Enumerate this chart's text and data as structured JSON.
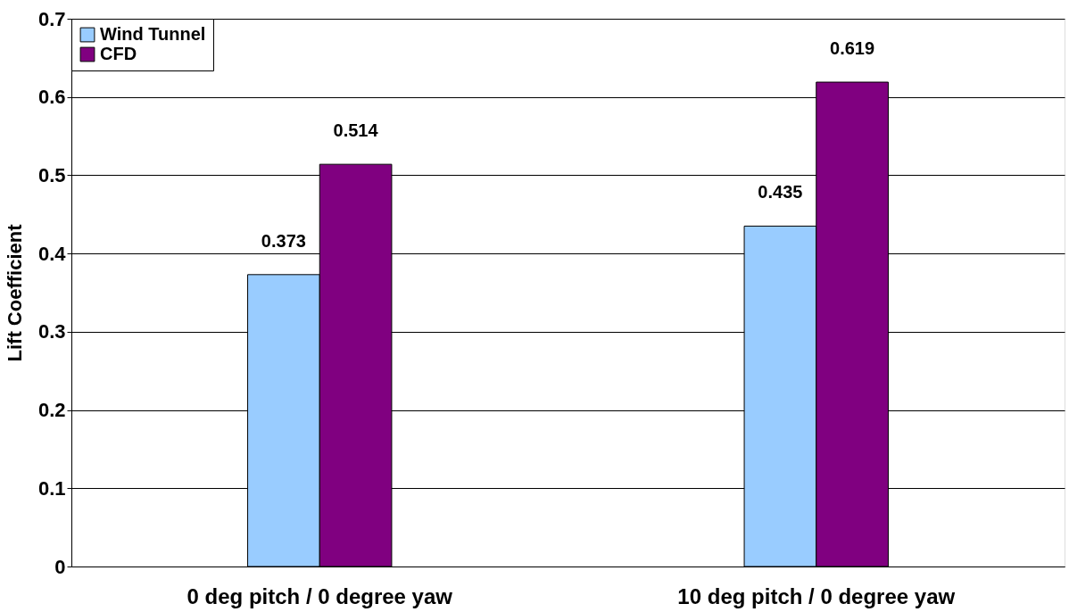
{
  "chart_data": {
    "type": "bar",
    "ylabel": "Lift Coefficient",
    "categories": [
      "0 deg pitch / 0 degree yaw",
      "10 deg pitch / 0 degree yaw"
    ],
    "series": [
      {
        "name": "Wind Tunnel",
        "color": "#99ccff",
        "values": [
          0.373,
          0.435
        ]
      },
      {
        "name": "CFD",
        "color": "#800080",
        "values": [
          0.514,
          0.619
        ]
      }
    ],
    "ylim": [
      0,
      0.7
    ],
    "yticks": [
      0,
      0.1,
      0.2,
      0.3,
      0.4,
      0.5,
      0.6,
      0.7
    ],
    "grid": "y",
    "legend": "top left",
    "data_labels": true
  }
}
